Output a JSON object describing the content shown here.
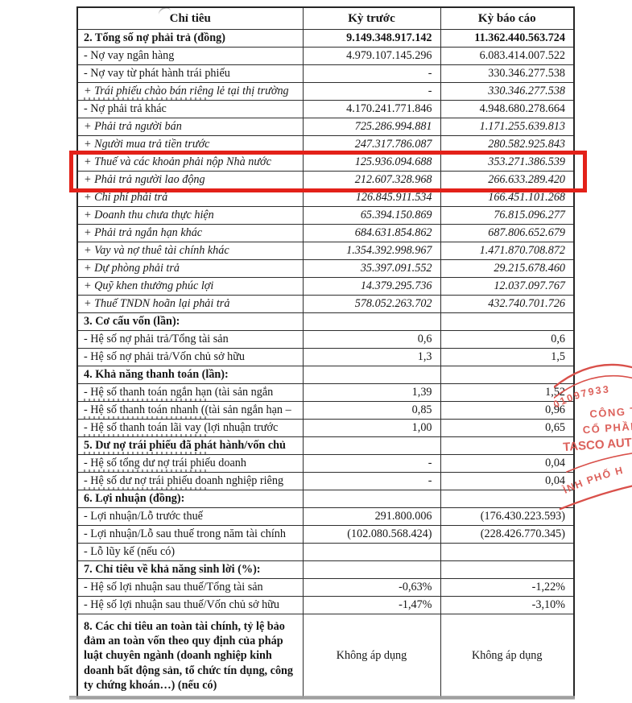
{
  "table": {
    "header": {
      "col_label": "Chỉ tiêu",
      "col_prev": "Kỳ trước",
      "col_curr": "Kỳ báo cáo"
    },
    "rows": [
      {
        "label": "2. Tổng số nợ phải trả (đồng)",
        "prev": "9.149.348.917.142",
        "curr": "11.362.440.563.724",
        "style": "bold"
      },
      {
        "label": "- Nợ vay ngân hàng",
        "prev": "4.979.107.145.296",
        "curr": "6.083.414.007.522",
        "style": "normal"
      },
      {
        "label": "- Nợ vay từ phát hành trái phiếu",
        "prev": "-",
        "curr": "330.346.277.538",
        "style": "normal"
      },
      {
        "label": "+ Trái phiếu chào bán riêng lẻ tại thị trường",
        "prev": "-",
        "curr": "330.346.277.538",
        "style": "italic",
        "clipped": true
      },
      {
        "label": "- Nợ phải trả khác",
        "prev": "4.170.241.771.846",
        "curr": "4.948.680.278.664",
        "style": "normal"
      },
      {
        "label": "+ Phải trả người bán",
        "prev": "725.286.994.881",
        "curr": "1.171.255.639.813",
        "style": "italic"
      },
      {
        "label": "+ Người mua trả tiền trước",
        "prev": "247.317.786.087",
        "curr": "280.582.925.843",
        "style": "italic"
      },
      {
        "label": "+ Thuế và các khoản phải nộp Nhà nước",
        "prev": "125.936.094.688",
        "curr": "353.271.386.539",
        "style": "italic",
        "highlighted": true
      },
      {
        "label": "+ Phải trả người lao động",
        "prev": "212.607.328.968",
        "curr": "266.633.289.420",
        "style": "italic",
        "highlighted": true
      },
      {
        "label": "+ Chi phí phải trả",
        "prev": "126.845.911.534",
        "curr": "166.451.101.268",
        "style": "italic"
      },
      {
        "label": "+ Doanh thu chưa thực hiện",
        "prev": "65.394.150.869",
        "curr": "76.815.096.277",
        "style": "italic"
      },
      {
        "label": "+ Phải trả ngắn hạn khác",
        "prev": "684.631.854.862",
        "curr": "687.806.652.679",
        "style": "italic"
      },
      {
        "label": "+ Vay và nợ thuê tài chính khác",
        "prev": "1.354.392.998.967",
        "curr": "1.471.870.708.872",
        "style": "italic"
      },
      {
        "label": "+ Dự phòng phải trả",
        "prev": "35.397.091.552",
        "curr": "29.215.678.460",
        "style": "italic"
      },
      {
        "label": "+ Quỹ khen thưởng phúc lợi",
        "prev": "14.379.295.736",
        "curr": "12.037.097.767",
        "style": "italic"
      },
      {
        "label": "+ Thuế TNDN hoãn lại phải trả",
        "prev": "578.052.263.702",
        "curr": "432.740.701.726",
        "style": "italic"
      },
      {
        "label": "3. Cơ cấu vốn (lần):",
        "prev": "",
        "curr": "",
        "style": "bold"
      },
      {
        "label": "- Hệ số nợ phải trả/Tổng tài sản",
        "prev": "0,6",
        "curr": "0,6",
        "style": "normal"
      },
      {
        "label": "- Hệ số nợ phải trả/Vốn chủ sở hữu",
        "prev": "1,3",
        "curr": "1,5",
        "style": "normal"
      },
      {
        "label": "4. Khả năng thanh toán (lần):",
        "prev": "",
        "curr": "",
        "style": "bold"
      },
      {
        "label": "- Hệ số thanh toán ngắn hạn (tài sản ngắn",
        "prev": "1,39",
        "curr": "1,52",
        "style": "normal",
        "clipped": true
      },
      {
        "label": "- Hệ số thanh toán nhanh ((tài sản ngắn hạn –",
        "prev": "0,85",
        "curr": "0,96",
        "style": "normal",
        "clipped": true
      },
      {
        "label": "- Hệ số thanh toán lãi vay (lợi nhuận trước",
        "prev": "1,00",
        "curr": "0,65",
        "style": "normal",
        "clipped": true
      },
      {
        "label": "5. Dư nợ trái phiếu đã phát hành/vốn chủ",
        "prev": "",
        "curr": "",
        "style": "bold",
        "clipped": true
      },
      {
        "label": "- Hệ số tổng dư nợ trái phiếu doanh",
        "prev": "-",
        "curr": "0,04",
        "style": "normal",
        "clipped": true
      },
      {
        "label": "- Hệ số dư nợ trái phiếu doanh nghiệp riêng",
        "prev": "-",
        "curr": "0,04",
        "style": "normal",
        "clipped": true
      },
      {
        "label": "6. Lợi nhuận (đồng):",
        "prev": "",
        "curr": "",
        "style": "bold"
      },
      {
        "label": "- Lợi nhuận/Lỗ trước thuế",
        "prev": "291.800.006",
        "curr": "(176.430.223.593)",
        "style": "normal"
      },
      {
        "label": "- Lợi nhuận/Lỗ sau thuế trong năm tài chính",
        "prev": "(102.080.568.424)",
        "curr": "(228.426.770.345)",
        "style": "normal"
      },
      {
        "label": "- Lỗ lũy kế (nếu có)",
        "prev": "",
        "curr": "",
        "style": "normal"
      },
      {
        "label": "7. Chỉ tiêu về khả năng sinh lời (%):",
        "prev": "",
        "curr": "",
        "style": "bold"
      },
      {
        "label": "- Hệ số lợi nhuận sau thuế/Tổng tài sản",
        "prev": "-0,63%",
        "curr": "-1,22%",
        "style": "normal"
      },
      {
        "label": "- Hệ số lợi nhuận sau thuế/Vốn chủ sở hữu",
        "prev": "-1,47%",
        "curr": "-3,10%",
        "style": "normal"
      },
      {
        "label": "8. Các chỉ tiêu an toàn tài chính, tỷ lệ bảo đảm an toàn vốn theo quy định của pháp luật chuyên ngành (doanh nghiệp kinh doanh bất động sản, tổ chức tín dụng, công ty chứng khoán…) (nếu có)",
        "prev": "Không áp dụng",
        "curr": "Không áp dụng",
        "style": "bold",
        "tall": true
      }
    ]
  },
  "highlight": {
    "border_color": "#e32119"
  },
  "stamp": {
    "color": "#d9504a",
    "number": "01097933",
    "center_line1": "CÔNG TY",
    "center_line2": "CỔ PHẦN",
    "center_line3": "TASCO AUT",
    "bottom_text": "ÌNH PHỐ H"
  }
}
